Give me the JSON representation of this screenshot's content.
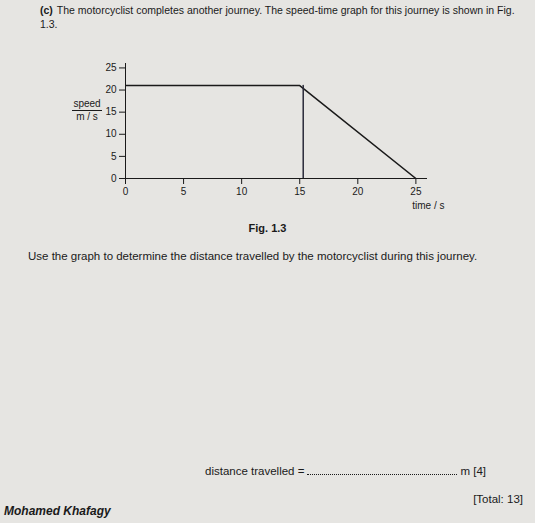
{
  "document": {
    "question_label": "(c)",
    "intro": "The motorcyclist completes another journey. The speed-time graph for this journey is shown in Fig. 1.3.",
    "caption": "Fig. 1.3",
    "question": "Use the graph to determine the distance travelled by the motorcyclist during this journey.",
    "answer_prefix": "distance travelled =",
    "answer_suffix": "m [4]",
    "total": "[Total: 13]",
    "name": "Mohamed Khafagy"
  },
  "chart_data": {
    "type": "line",
    "xlabel": "time / s",
    "ylabel": [
      "speed",
      "m / s"
    ],
    "series": [
      {
        "x": [
          0,
          15,
          25
        ],
        "values": [
          21,
          21,
          0
        ],
        "color": "#1a1a1a"
      },
      {
        "x": [
          15.3,
          15.3
        ],
        "values": [
          21,
          0
        ],
        "color": "#2a2a3a"
      }
    ],
    "xlim": [
      0,
      26
    ],
    "xticks": [
      0,
      5,
      10,
      15,
      20,
      25
    ],
    "ylim": [
      0,
      26
    ],
    "yticks": [
      0,
      5,
      10,
      15,
      20,
      25
    ],
    "grid": false
  }
}
